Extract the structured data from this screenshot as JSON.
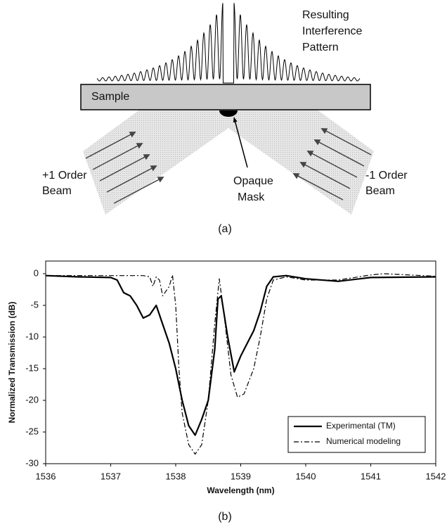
{
  "diagram": {
    "pattern_label": [
      "Resulting",
      "Interference",
      "Pattern"
    ],
    "sample_label": "Sample",
    "left_beam_label": [
      "+1 Order",
      "Beam"
    ],
    "right_beam_label": [
      "-1 Order",
      "Beam"
    ],
    "mask_label": [
      "Opaque",
      "Mask"
    ],
    "caption": "(a)"
  },
  "chart_data": {
    "type": "line",
    "caption": "(b)",
    "x_label": "Wavelength (nm)",
    "y_label": "Normalized Transmission (dB)",
    "xlim": [
      1536,
      1542
    ],
    "xticks": [
      1536,
      1537,
      1538,
      1539,
      1540,
      1541,
      1542
    ],
    "ylim": [
      -30,
      2
    ],
    "yticks": [
      0,
      -5,
      -10,
      -15,
      -20,
      -25,
      -30
    ],
    "grid": false,
    "legend": "lower right",
    "series": [
      {
        "name": "Experimental (TM)",
        "color": "#000000",
        "style": "solid",
        "x": [
          1536,
          1536.5,
          1537.0,
          1537.1,
          1537.2,
          1537.3,
          1537.4,
          1537.5,
          1537.6,
          1537.7,
          1537.8,
          1537.9,
          1538.0,
          1538.1,
          1538.2,
          1538.3,
          1538.4,
          1538.5,
          1538.6,
          1538.65,
          1538.7,
          1538.8,
          1538.9,
          1539.0,
          1539.1,
          1539.2,
          1539.3,
          1539.4,
          1539.5,
          1539.7,
          1540,
          1540.5,
          1541,
          1542
        ],
        "values": [
          -0.3,
          -0.5,
          -0.6,
          -1,
          -3,
          -3.5,
          -5,
          -7,
          -6.5,
          -5,
          -8,
          -11,
          -15,
          -20,
          -24,
          -25.5,
          -23,
          -20,
          -12,
          -4,
          -3.5,
          -10,
          -15.5,
          -13,
          -11,
          -9,
          -6,
          -2,
          -0.5,
          -0.3,
          -0.8,
          -1.2,
          -0.6,
          -0.5
        ]
      },
      {
        "name": "Numerical modeling",
        "color": "#000000",
        "style": "dashdot",
        "x": [
          1536,
          1537.5,
          1537.6,
          1537.65,
          1537.7,
          1537.75,
          1537.8,
          1537.9,
          1537.95,
          1538.0,
          1538.05,
          1538.1,
          1538.2,
          1538.3,
          1538.4,
          1538.5,
          1538.6,
          1538.67,
          1538.75,
          1538.85,
          1538.95,
          1539.05,
          1539.2,
          1539.3,
          1539.4,
          1539.5,
          1539.7,
          1540,
          1540.5,
          1541,
          1541.2,
          1542
        ],
        "values": [
          -0.3,
          -0.3,
          -0.5,
          -2,
          -0.5,
          -1,
          -3.5,
          -2,
          -0.2,
          -5,
          -15,
          -22,
          -27,
          -28.5,
          -27,
          -20,
          -8,
          -0.8,
          -7,
          -16,
          -19.5,
          -19,
          -15,
          -10,
          -4,
          -1,
          -0.5,
          -1,
          -1,
          -0.2,
          0,
          -0.4
        ]
      }
    ]
  }
}
